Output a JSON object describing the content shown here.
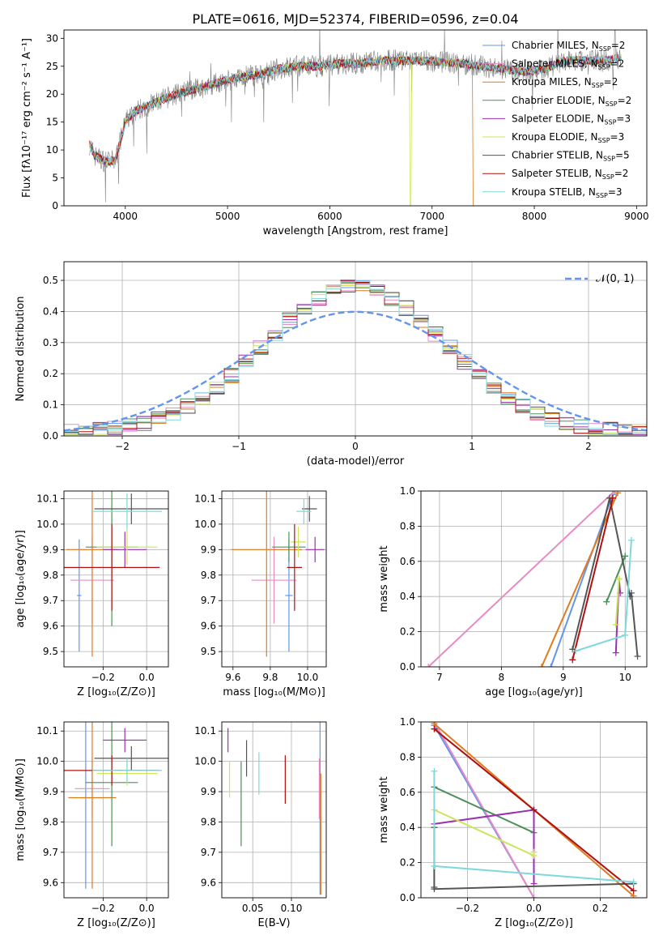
{
  "figure_title": "PLATE=0616, MJD=52374, FIBERID=0596, z=0.04",
  "colors": {
    "Chabrier MILES": "#6495ED",
    "Salpeter MILES": "#E88BC4",
    "Kroupa MILES": "#E07B1F",
    "Chabrier ELODIE": "#4F8F5B",
    "Salpeter ELODIE": "#9B30B0",
    "Kroupa ELODIE": "#CDE55A",
    "Chabrier STELIB": "#555555",
    "Salpeter STELIB": "#B01010",
    "Kroupa STELIB": "#7FD8DC",
    "data": "#808080"
  },
  "chart_data": [
    {
      "id": "spectrum",
      "type": "line",
      "title": "PLATE=0616, MJD=52374, FIBERID=0596, z=0.04",
      "xlabel": "wavelength [Angstrom, rest frame]",
      "ylabel": "Flux [fλ10⁻¹⁷ erg cm⁻² s⁻¹ A⁻¹]",
      "xlim": [
        3400,
        9100
      ],
      "ylim": [
        0,
        31.5
      ],
      "xticks": [
        4000,
        5000,
        6000,
        7000,
        8000,
        9000
      ],
      "yticks": [
        0,
        5,
        10,
        15,
        20,
        25,
        30
      ],
      "legend_position": "top-right",
      "legend": [
        {
          "label": "Chabrier MILES, N",
          "sub": "SSP",
          "suffix": "=2"
        },
        {
          "label": "Salpeter MILES, N",
          "sub": "SSP",
          "suffix": "=2"
        },
        {
          "label": "Kroupa MILES, N",
          "sub": "SSP",
          "suffix": "=2"
        },
        {
          "label": "Chabrier ELODIE, N",
          "sub": "SSP",
          "suffix": "=2"
        },
        {
          "label": "Salpeter ELODIE, N",
          "sub": "SSP",
          "suffix": "=3"
        },
        {
          "label": "Kroupa ELODIE, N",
          "sub": "SSP",
          "suffix": "=3"
        },
        {
          "label": "Chabrier STELIB, N",
          "sub": "SSP",
          "suffix": "=5"
        },
        {
          "label": "Salpeter STELIB, N",
          "sub": "SSP",
          "suffix": "=2"
        },
        {
          "label": "Kroupa STELIB, N",
          "sub": "SSP",
          "suffix": "=3"
        }
      ],
      "continuum": {
        "x": [
          3650,
          3700,
          3800,
          3900,
          4000,
          4100,
          4300,
          4500,
          4700,
          4900,
          5100,
          5300,
          5500,
          5700,
          5900,
          6100,
          6300,
          6500,
          6700,
          6900,
          7100,
          7300,
          7500,
          7700,
          7900,
          8100,
          8300,
          8500,
          8700,
          8850
        ],
        "y": [
          11,
          9,
          8,
          8,
          15,
          17,
          18.5,
          20,
          21,
          22,
          23,
          23.5,
          24.5,
          25,
          25,
          25.5,
          25.5,
          26,
          26,
          26,
          25.8,
          25.5,
          25,
          24.5,
          24,
          24.5,
          26,
          26,
          26,
          26.5
        ]
      },
      "sharp_drops": [
        {
          "series": "Kroupa ELODIE",
          "x": 6790
        },
        {
          "series": "Kroupa MILES",
          "x": 7400
        }
      ]
    },
    {
      "id": "residuals",
      "type": "histogram",
      "xlabel": "(data-model)/error",
      "ylabel": "Normed distribution",
      "xlim": [
        -2.5,
        2.5
      ],
      "ylim": [
        0,
        0.56
      ],
      "xticks": [
        -2,
        -1,
        0,
        1,
        2
      ],
      "yticks": [
        0.0,
        0.1,
        0.2,
        0.3,
        0.4,
        0.5
      ],
      "legend_position": "top-right",
      "reference_label": "𝒩(0, 1)",
      "bin_edges_range": [
        -2.5,
        2.5
      ],
      "n_bins": 40
    },
    {
      "id": "age_vs_Z",
      "type": "scatter",
      "xlabel": "Z [log₁₀(Z/Z⊙)]",
      "ylabel": "age  [log₁₀(age/yr)]",
      "xlim": [
        -0.38,
        0.1
      ],
      "ylim": [
        9.44,
        10.13
      ],
      "xticks": [
        -0.2,
        0.0
      ],
      "yticks": [
        9.5,
        9.6,
        9.7,
        9.8,
        9.9,
        10.0,
        10.1
      ],
      "points": [
        {
          "series": "Chabrier MILES",
          "x": -0.31,
          "y": 9.72,
          "xerr": 0.01,
          "yerr": 0.22
        },
        {
          "series": "Salpeter MILES",
          "x": -0.25,
          "y": 9.78,
          "xerr": 0.1,
          "yerr": 0.17
        },
        {
          "series": "Kroupa MILES",
          "x": -0.25,
          "y": 9.9,
          "xerr": 0.12,
          "yerr": 0.42
        },
        {
          "series": "Chabrier ELODIE",
          "x": -0.16,
          "y": 9.91,
          "xerr": 0.12,
          "yerr": 0.31
        },
        {
          "series": "Salpeter ELODIE",
          "x": -0.1,
          "y": 9.9,
          "xerr": 0.1,
          "yerr": 0.07
        },
        {
          "series": "Kroupa ELODIE",
          "x": -0.09,
          "y": 9.91,
          "xerr": 0.14,
          "yerr": 0.07
        },
        {
          "series": "Chabrier STELIB",
          "x": -0.07,
          "y": 10.06,
          "xerr": 0.17,
          "yerr": 0.06
        },
        {
          "series": "Salpeter STELIB",
          "x": -0.16,
          "y": 9.83,
          "xerr": 0.22,
          "yerr": 0.17
        },
        {
          "series": "Kroupa STELIB",
          "x": -0.09,
          "y": 10.05,
          "xerr": 0.16,
          "yerr": 0.07
        }
      ]
    },
    {
      "id": "age_vs_mass",
      "type": "scatter",
      "xlabel": "mass [log₁₀(M/M⊙)]",
      "xlim": [
        9.54,
        10.1
      ],
      "ylim": [
        9.44,
        10.13
      ],
      "xticks": [
        9.6,
        9.8,
        10.0
      ],
      "yticks": [
        9.5,
        9.6,
        9.7,
        9.8,
        9.9,
        10.0,
        10.1
      ],
      "points": [
        {
          "series": "Chabrier MILES",
          "x": 9.9,
          "y": 9.72,
          "xerr": 0.02,
          "yerr": 0.22
        },
        {
          "series": "Salpeter MILES",
          "x": 9.82,
          "y": 9.78,
          "xerr": 0.12,
          "yerr": 0.17
        },
        {
          "series": "Kroupa MILES",
          "x": 9.78,
          "y": 9.9,
          "xerr": 0.19,
          "yerr": 0.42
        },
        {
          "series": "Chabrier ELODIE",
          "x": 9.9,
          "y": 9.91,
          "xerr": 0.09,
          "yerr": 0.06
        },
        {
          "series": "Salpeter ELODIE",
          "x": 10.04,
          "y": 9.9,
          "xerr": 0.05,
          "yerr": 0.05
        },
        {
          "series": "Kroupa ELODIE",
          "x": 9.95,
          "y": 9.93,
          "xerr": 0.04,
          "yerr": 0.06
        },
        {
          "series": "Chabrier STELIB",
          "x": 10.01,
          "y": 10.06,
          "xerr": 0.04,
          "yerr": 0.05
        },
        {
          "series": "Salpeter STELIB",
          "x": 9.93,
          "y": 9.83,
          "xerr": 0.04,
          "yerr": 0.17
        },
        {
          "series": "Kroupa STELIB",
          "x": 9.98,
          "y": 10.05,
          "xerr": 0.04,
          "yerr": 0.05
        }
      ]
    },
    {
      "id": "weight_vs_age",
      "type": "line",
      "xlabel": "age  [log₁₀(age/yr)]",
      "ylabel": "mass weight",
      "xlim": [
        6.7,
        10.35
      ],
      "ylim": [
        0,
        1.0
      ],
      "xticks": [
        7,
        8,
        9,
        10
      ],
      "yticks": [
        0.0,
        0.2,
        0.4,
        0.6,
        0.8,
        1.0
      ],
      "series": [
        {
          "name": "Chabrier MILES",
          "x": [
            8.8,
            9.8
          ],
          "y": [
            0.0,
            0.98
          ]
        },
        {
          "name": "Salpeter MILES",
          "x": [
            6.82,
            9.83
          ],
          "y": [
            0.0,
            1.0
          ]
        },
        {
          "name": "Kroupa MILES",
          "x": [
            8.65,
            9.88
          ],
          "y": [
            0.0,
            0.99
          ]
        },
        {
          "name": "Chabrier ELODIE",
          "x": [
            9.7,
            10.0
          ],
          "y": [
            0.37,
            0.63
          ]
        },
        {
          "name": "Salpeter ELODIE",
          "x": [
            9.85,
            9.9,
            9.92
          ],
          "y": [
            0.08,
            0.5,
            0.42
          ]
        },
        {
          "name": "Kroupa ELODIE",
          "x": [
            9.85,
            9.9
          ],
          "y": [
            0.24,
            0.5
          ]
        },
        {
          "name": "Chabrier STELIB",
          "x": [
            9.15,
            9.75,
            10.08,
            10.1,
            10.2
          ],
          "y": [
            0.1,
            0.96,
            0.4,
            0.42,
            0.06
          ]
        },
        {
          "name": "Salpeter STELIB",
          "x": [
            9.15,
            9.8
          ],
          "y": [
            0.04,
            0.96
          ]
        },
        {
          "name": "Kroupa STELIB",
          "x": [
            9.2,
            10.0,
            10.1
          ],
          "y": [
            0.09,
            0.18,
            0.72
          ]
        }
      ]
    },
    {
      "id": "mass_vs_Z",
      "type": "scatter",
      "xlabel": "Z [log₁₀(Z/Z⊙)]",
      "ylabel": "mass [log₁₀(M/M⊙)]",
      "xlim": [
        -0.38,
        0.1
      ],
      "ylim": [
        9.55,
        10.13
      ],
      "xticks": [
        -0.2,
        0.0
      ],
      "yticks": [
        9.6,
        9.7,
        9.8,
        9.9,
        10.0,
        10.1
      ],
      "points": [
        {
          "series": "Chabrier MILES",
          "x": -0.28,
          "y": 9.88,
          "xerr": 0.02,
          "yerr": 0.3
        },
        {
          "series": "Salpeter MILES",
          "x": -0.25,
          "y": 9.91,
          "xerr": 0.08,
          "yerr": 0.1
        },
        {
          "series": "Kroupa MILES",
          "x": -0.25,
          "y": 9.88,
          "xerr": 0.11,
          "yerr": 0.3
        },
        {
          "series": "Chabrier ELODIE",
          "x": -0.16,
          "y": 9.93,
          "xerr": 0.12,
          "yerr": 0.21
        },
        {
          "series": "Salpeter ELODIE",
          "x": -0.1,
          "y": 10.07,
          "xerr": 0.1,
          "yerr": 0.04
        },
        {
          "series": "Kroupa ELODIE",
          "x": -0.09,
          "y": 9.96,
          "xerr": 0.14,
          "yerr": 0.04
        },
        {
          "series": "Chabrier STELIB",
          "x": -0.07,
          "y": 10.01,
          "xerr": 0.17,
          "yerr": 0.04
        },
        {
          "series": "Salpeter STELIB",
          "x": -0.16,
          "y": 9.97,
          "xerr": 0.22,
          "yerr": 0.05
        },
        {
          "series": "Kroupa STELIB",
          "x": -0.09,
          "y": 9.97,
          "xerr": 0.16,
          "yerr": 0.04
        }
      ]
    },
    {
      "id": "mass_vs_ebv",
      "type": "scatter",
      "xlabel": "E(B-V)",
      "xlim": [
        0.01,
        0.145
      ],
      "ylim": [
        9.55,
        10.13
      ],
      "xticks": [
        0.05,
        0.1
      ],
      "xticklabels": [
        "0.05",
        "0.10"
      ],
      "yticks": [
        9.6,
        9.7,
        9.8,
        9.9,
        10.0,
        10.1
      ],
      "points": [
        {
          "series": "Chabrier MILES",
          "x": 0.137,
          "y": 9.86,
          "xerr": 0,
          "yerr": 0.3
        },
        {
          "series": "Salpeter MILES",
          "x": 0.136,
          "y": 9.91,
          "xerr": 0,
          "yerr": 0.1
        },
        {
          "series": "Kroupa MILES",
          "x": 0.138,
          "y": 9.76,
          "xerr": 0,
          "yerr": 0.2
        },
        {
          "series": "Chabrier ELODIE",
          "x": 0.035,
          "y": 9.86,
          "xerr": 0,
          "yerr": 0.14
        },
        {
          "series": "Salpeter ELODIE",
          "x": 0.018,
          "y": 10.07,
          "xerr": 0,
          "yerr": 0.04
        },
        {
          "series": "Kroupa ELODIE",
          "x": 0.02,
          "y": 9.94,
          "xerr": 0,
          "yerr": 0.06
        },
        {
          "series": "Chabrier STELIB",
          "x": 0.042,
          "y": 10.01,
          "xerr": 0,
          "yerr": 0.06
        },
        {
          "series": "Salpeter STELIB",
          "x": 0.092,
          "y": 9.94,
          "xerr": 0,
          "yerr": 0.08
        },
        {
          "series": "Kroupa STELIB",
          "x": 0.058,
          "y": 9.96,
          "xerr": 0,
          "yerr": 0.07
        }
      ]
    },
    {
      "id": "weight_vs_Z",
      "type": "line",
      "xlabel": "Z [log₁₀(Z/Z⊙)]",
      "ylabel": "mass weight",
      "xlim": [
        -0.34,
        0.34
      ],
      "ylim": [
        0,
        1.0
      ],
      "xticks": [
        -0.2,
        0.0,
        0.2
      ],
      "yticks": [
        0.0,
        0.2,
        0.4,
        0.6,
        0.8,
        1.0
      ],
      "series": [
        {
          "name": "Chabrier MILES",
          "x": [
            -0.3,
            0.0
          ],
          "y": [
            0.98,
            0.0
          ]
        },
        {
          "name": "Salpeter MILES",
          "x": [
            -0.3,
            0.0
          ],
          "y": [
            1.0,
            0.0
          ]
        },
        {
          "name": "Kroupa MILES",
          "x": [
            -0.3,
            0.3
          ],
          "y": [
            0.99,
            0.01
          ]
        },
        {
          "name": "Chabrier ELODIE",
          "x": [
            -0.3,
            0.0
          ],
          "y": [
            0.63,
            0.37
          ]
        },
        {
          "name": "Salpeter ELODIE",
          "x": [
            -0.3,
            0.0,
            0.0
          ],
          "y": [
            0.42,
            0.5,
            0.08
          ]
        },
        {
          "name": "Kroupa ELODIE",
          "x": [
            -0.3,
            0.0,
            0.0
          ],
          "y": [
            0.5,
            0.24,
            0.26
          ]
        },
        {
          "name": "Chabrier STELIB",
          "x": [
            -0.3,
            -0.3,
            -0.3,
            0.3
          ],
          "y": [
            0.4,
            0.06,
            0.05,
            0.08
          ]
        },
        {
          "name": "Salpeter STELIB",
          "x": [
            -0.3,
            0.0,
            0.3
          ],
          "y": [
            0.96,
            0.5,
            0.04
          ]
        },
        {
          "name": "Kroupa STELIB",
          "x": [
            -0.3,
            -0.3,
            0.3
          ],
          "y": [
            0.72,
            0.18,
            0.09
          ]
        }
      ]
    }
  ]
}
